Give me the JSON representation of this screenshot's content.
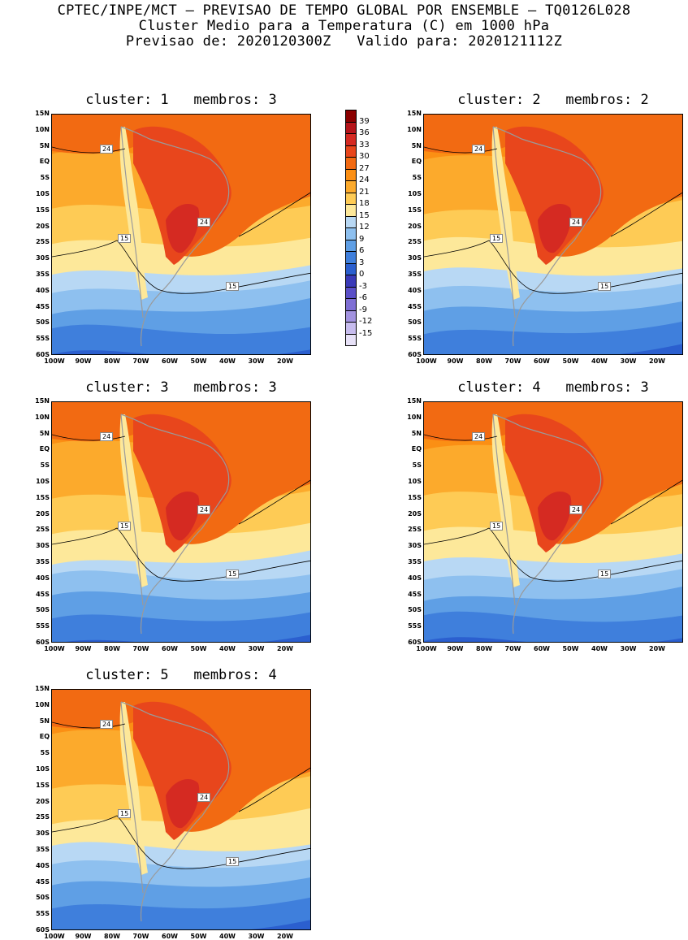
{
  "header": {
    "line1": "CPTEC/INPE/MCT – PREVISAO DE TEMPO GLOBAL POR ENSEMBLE – TQ0126L028",
    "line2": "Cluster Medio para a Temperatura (C) em 1000 hPa",
    "line3": "Previsao de: 2020120300Z   Valido para: 2020121112Z"
  },
  "panels": [
    {
      "title": "cluster: 1   membros: 3",
      "cluster": 1,
      "members": 3
    },
    {
      "title": "cluster: 2   membros: 2",
      "cluster": 2,
      "members": 2
    },
    {
      "title": "cluster: 3   membros: 3",
      "cluster": 3,
      "members": 3
    },
    {
      "title": "cluster: 4   membros: 3",
      "cluster": 4,
      "members": 3
    },
    {
      "title": "cluster: 5   membros: 4",
      "cluster": 5,
      "members": 4
    }
  ],
  "map": {
    "lat_labels": [
      "15N",
      "10N",
      "5N",
      "EQ",
      "5S",
      "10S",
      "15S",
      "20S",
      "25S",
      "30S",
      "35S",
      "40S",
      "45S",
      "50S",
      "55S",
      "60S"
    ],
    "lon_labels": [
      "100W",
      "90W",
      "80W",
      "70W",
      "60W",
      "50W",
      "40W",
      "30W",
      "20W"
    ],
    "contour_labels": [
      "24",
      "15"
    ]
  },
  "legend": {
    "labels": [
      "39",
      "36",
      "33",
      "30",
      "27",
      "24",
      "21",
      "18",
      "15",
      "12",
      "9",
      "6",
      "3",
      "0",
      "-3",
      "-6",
      "-9",
      "-12",
      "-15"
    ],
    "colors": [
      "#8b0000",
      "#b5141a",
      "#d52a22",
      "#e8461c",
      "#f26a12",
      "#fb8f14",
      "#fcaa2c",
      "#fecb55",
      "#fde89a",
      "#b8d8f4",
      "#8ec0ef",
      "#5f9fe5",
      "#3f7fdc",
      "#2b5fcf",
      "#3a3ab8",
      "#5a4fc7",
      "#7f6fd4",
      "#a393e0",
      "#c7bcee",
      "#e7e1f7"
    ]
  }
}
